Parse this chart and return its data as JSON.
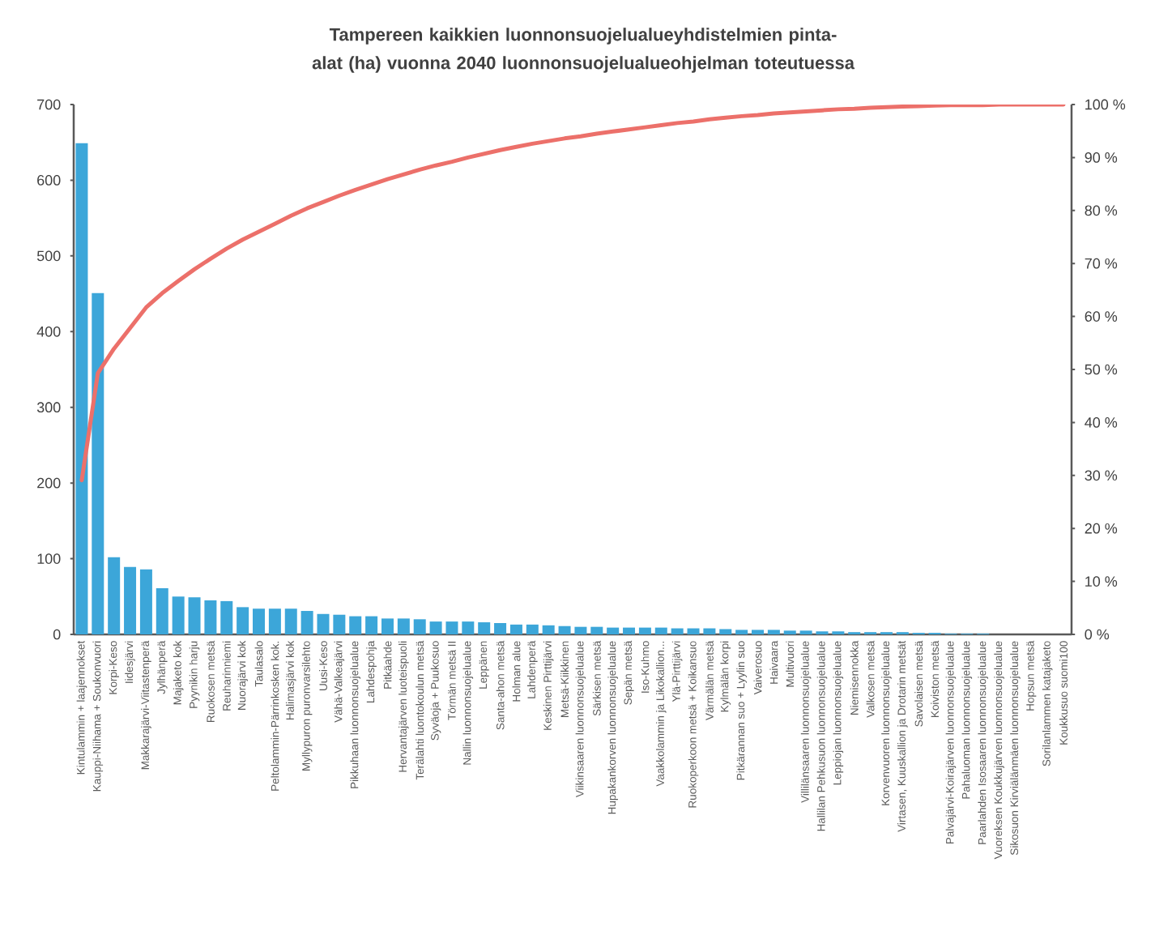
{
  "chart_data": {
    "type": "bar",
    "title": "Tampereen kaikkien luonnonsuojelualueyhdistelmien pinta-alat (ha) vuonna 2040 luonnonsuojelualueohjelman toteutuessa",
    "categories": [
      "Kintulammin + laajennokset",
      "Kauppi-Niihama + Soukonvuori",
      "Korpi-Keso",
      "Iidesjärvi",
      "Makkarajärvi-Viitastenperä",
      "Jylhänperä",
      "Majaketo kok",
      "Pyynikin harju",
      "Ruokosen metsä",
      "Reuharinniemi",
      "Nuorajärvi kok",
      "Taulasalo",
      "Peltolammin-Pärrinkosken kok.",
      "Halimasjärvi kok",
      "Myllypuron puronvarsilehto",
      "Uusi-Keso",
      "Vähä-Valkeajärvi",
      "Pikkuhaan luonnonsuojelualue",
      "Lahdespohja",
      "Pitkäahde",
      "Hervantajärven luoteispuoli",
      "Terälahti luontokoulun metsä",
      "Syväoja + Puukosuo",
      "Törmän metsä II",
      "Nallin luonnonsuojelualue",
      "Leppänen",
      "Santa-ahon metsä",
      "Holman alue",
      "Lahdenperä",
      "Keskinen Pirttijärvi",
      "Metsä-Kiikkinen",
      "Viikinsaaren luonnonsuojelualue",
      "Särkisen metsä",
      "Hupakankorven luonnonsuojelualue",
      "Sepän metsä",
      "Iso-Kuhmo",
      "Vaakkolammin ja Likokallion...",
      "Ylä-Pirttijärvi",
      "Ruokoperkoon metsä + Koikansuo",
      "Värmälän metsä",
      "Kylmälän korpi",
      "Pitkärannan suo + Lyylin suo",
      "Vaiverosuo",
      "Haivaara",
      "Multivuori",
      "Villilänsaaren luonnonsuojelualue",
      "Hallilan Pehkusuon luonnonsuojelualue",
      "Leppiojan luonnonsuojelualue",
      "Niemisennokka",
      "Valkosen metsä",
      "Korvenvuoren luonnonsuojelualue",
      "Virtasen, Kuuskallion ja Drotarin metsät",
      "Savolaisen metsä",
      "Koiviston metsä",
      "Palvajärvi-Koirajärven luonnonsuojelualue",
      "Pahaluoman luonnonsuojelualue",
      "Paarlahden Isosaaren luonnonsuojelualue",
      "Vuoreksen Koukkujärven luonnonsuojelualue",
      "Sikosuon Kirviälänmäen luonnonsuojelualue",
      "Hopsun metsä",
      "Sorilanlammen katajaketo",
      "Koukkusuo suomi100"
    ],
    "series": [
      {
        "color": "#3ca6d9",
        "values": [
          649,
          451,
          102,
          89,
          86,
          61,
          50,
          49,
          45,
          44,
          36,
          34,
          34,
          34,
          31,
          27,
          26,
          24,
          24,
          21,
          21,
          20,
          17,
          17,
          17,
          16,
          15,
          13,
          13,
          12,
          11,
          10,
          10,
          9,
          9,
          9,
          9,
          8,
          8,
          8,
          7,
          6,
          6,
          6,
          5,
          5,
          4,
          4,
          3,
          3,
          3,
          3,
          2,
          2,
          1,
          1,
          1,
          0,
          0,
          0,
          0,
          0
        ]
      },
      {
        "type": "line",
        "axis": "y2",
        "color": "#ec706a",
        "values": [
          29.1,
          49.3,
          53.9,
          57.8,
          61.7,
          64.4,
          66.7,
          68.9,
          70.9,
          72.8,
          74.5,
          76.0,
          77.5,
          79.0,
          80.4,
          81.6,
          82.8,
          83.9,
          84.9,
          85.9,
          86.8,
          87.7,
          88.5,
          89.2,
          90.0,
          90.7,
          91.4,
          92.0,
          92.6,
          93.1,
          93.6,
          94.0,
          94.5,
          94.9,
          95.3,
          95.7,
          96.1,
          96.5,
          96.8,
          97.2,
          97.5,
          97.8,
          98.0,
          98.3,
          98.5,
          98.7,
          98.9,
          99.1,
          99.2,
          99.4,
          99.5,
          99.6,
          99.7,
          99.8,
          99.9,
          99.9,
          99.9,
          100,
          100,
          100,
          100,
          100
        ]
      }
    ],
    "ylim": [
      0,
      700
    ],
    "yticks": [
      0,
      100,
      200,
      300,
      400,
      500,
      600,
      700
    ],
    "y2lim": [
      0,
      100
    ],
    "y2ticks": [
      {
        "value": 0,
        "label": "0 %"
      },
      {
        "value": 10,
        "label": "10 %"
      },
      {
        "value": 20,
        "label": "20 %"
      },
      {
        "value": 30,
        "label": "30 %"
      },
      {
        "value": 40,
        "label": "40 %"
      },
      {
        "value": 50,
        "label": "50 %"
      },
      {
        "value": 60,
        "label": "60 %"
      },
      {
        "value": 70,
        "label": "70 %"
      },
      {
        "value": 80,
        "label": "80 %"
      },
      {
        "value": 90,
        "label": "90 %"
      },
      {
        "value": 100,
        "label": "100 %"
      }
    ]
  }
}
